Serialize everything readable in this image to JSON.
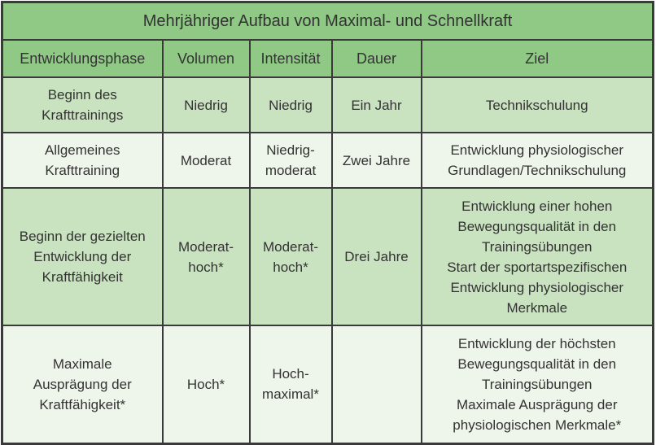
{
  "title": "Mehrjähriger Aufbau von Maximal- und Schnellkraft",
  "headers": [
    "Entwicklungsphase",
    "Volumen",
    "Intensität",
    "Dauer",
    "Ziel"
  ],
  "rows": [
    {
      "phase": "Beginn des\nKrafttrainings",
      "volumen": "Niedrig",
      "intensitaet": "Niedrig",
      "dauer": "Ein Jahr",
      "ziel": "Technikschulung"
    },
    {
      "phase": "Allgemeines\nKrafttraining",
      "volumen": "Moderat",
      "intensitaet": "Niedrig-\nmoderat",
      "dauer": "Zwei Jahre",
      "ziel": "Entwicklung physiologischer\nGrundlagen/Technikschulung"
    },
    {
      "phase": "Beginn der gezielten\nEntwicklung der\nKraftfähigkeit",
      "volumen": "Moderat-\nhoch*",
      "intensitaet": "Moderat-\nhoch*",
      "dauer": "Drei Jahre",
      "ziel": "Entwicklung einer hohen\nBewegungsqualität in den\nTrainingsübungen\nStart der sportartspezifischen\nEntwicklung physiologischer\nMerkmale"
    },
    {
      "phase": "Maximale\nAusprägung der\nKraftfähigkeit*",
      "volumen": "Hoch*",
      "intensitaet": "Hoch-\nmaximal*",
      "dauer": "",
      "ziel": "Entwicklung der höchsten\nBewegungsqualität in den\nTrainingsübungen\nMaximale Ausprägung der\nphysiologischen Merkmale*"
    }
  ],
  "colors": {
    "header": "#8fc985",
    "row_dark": "#c9e2bf",
    "row_light": "#eef5ea",
    "border": "#3a3a3a"
  }
}
